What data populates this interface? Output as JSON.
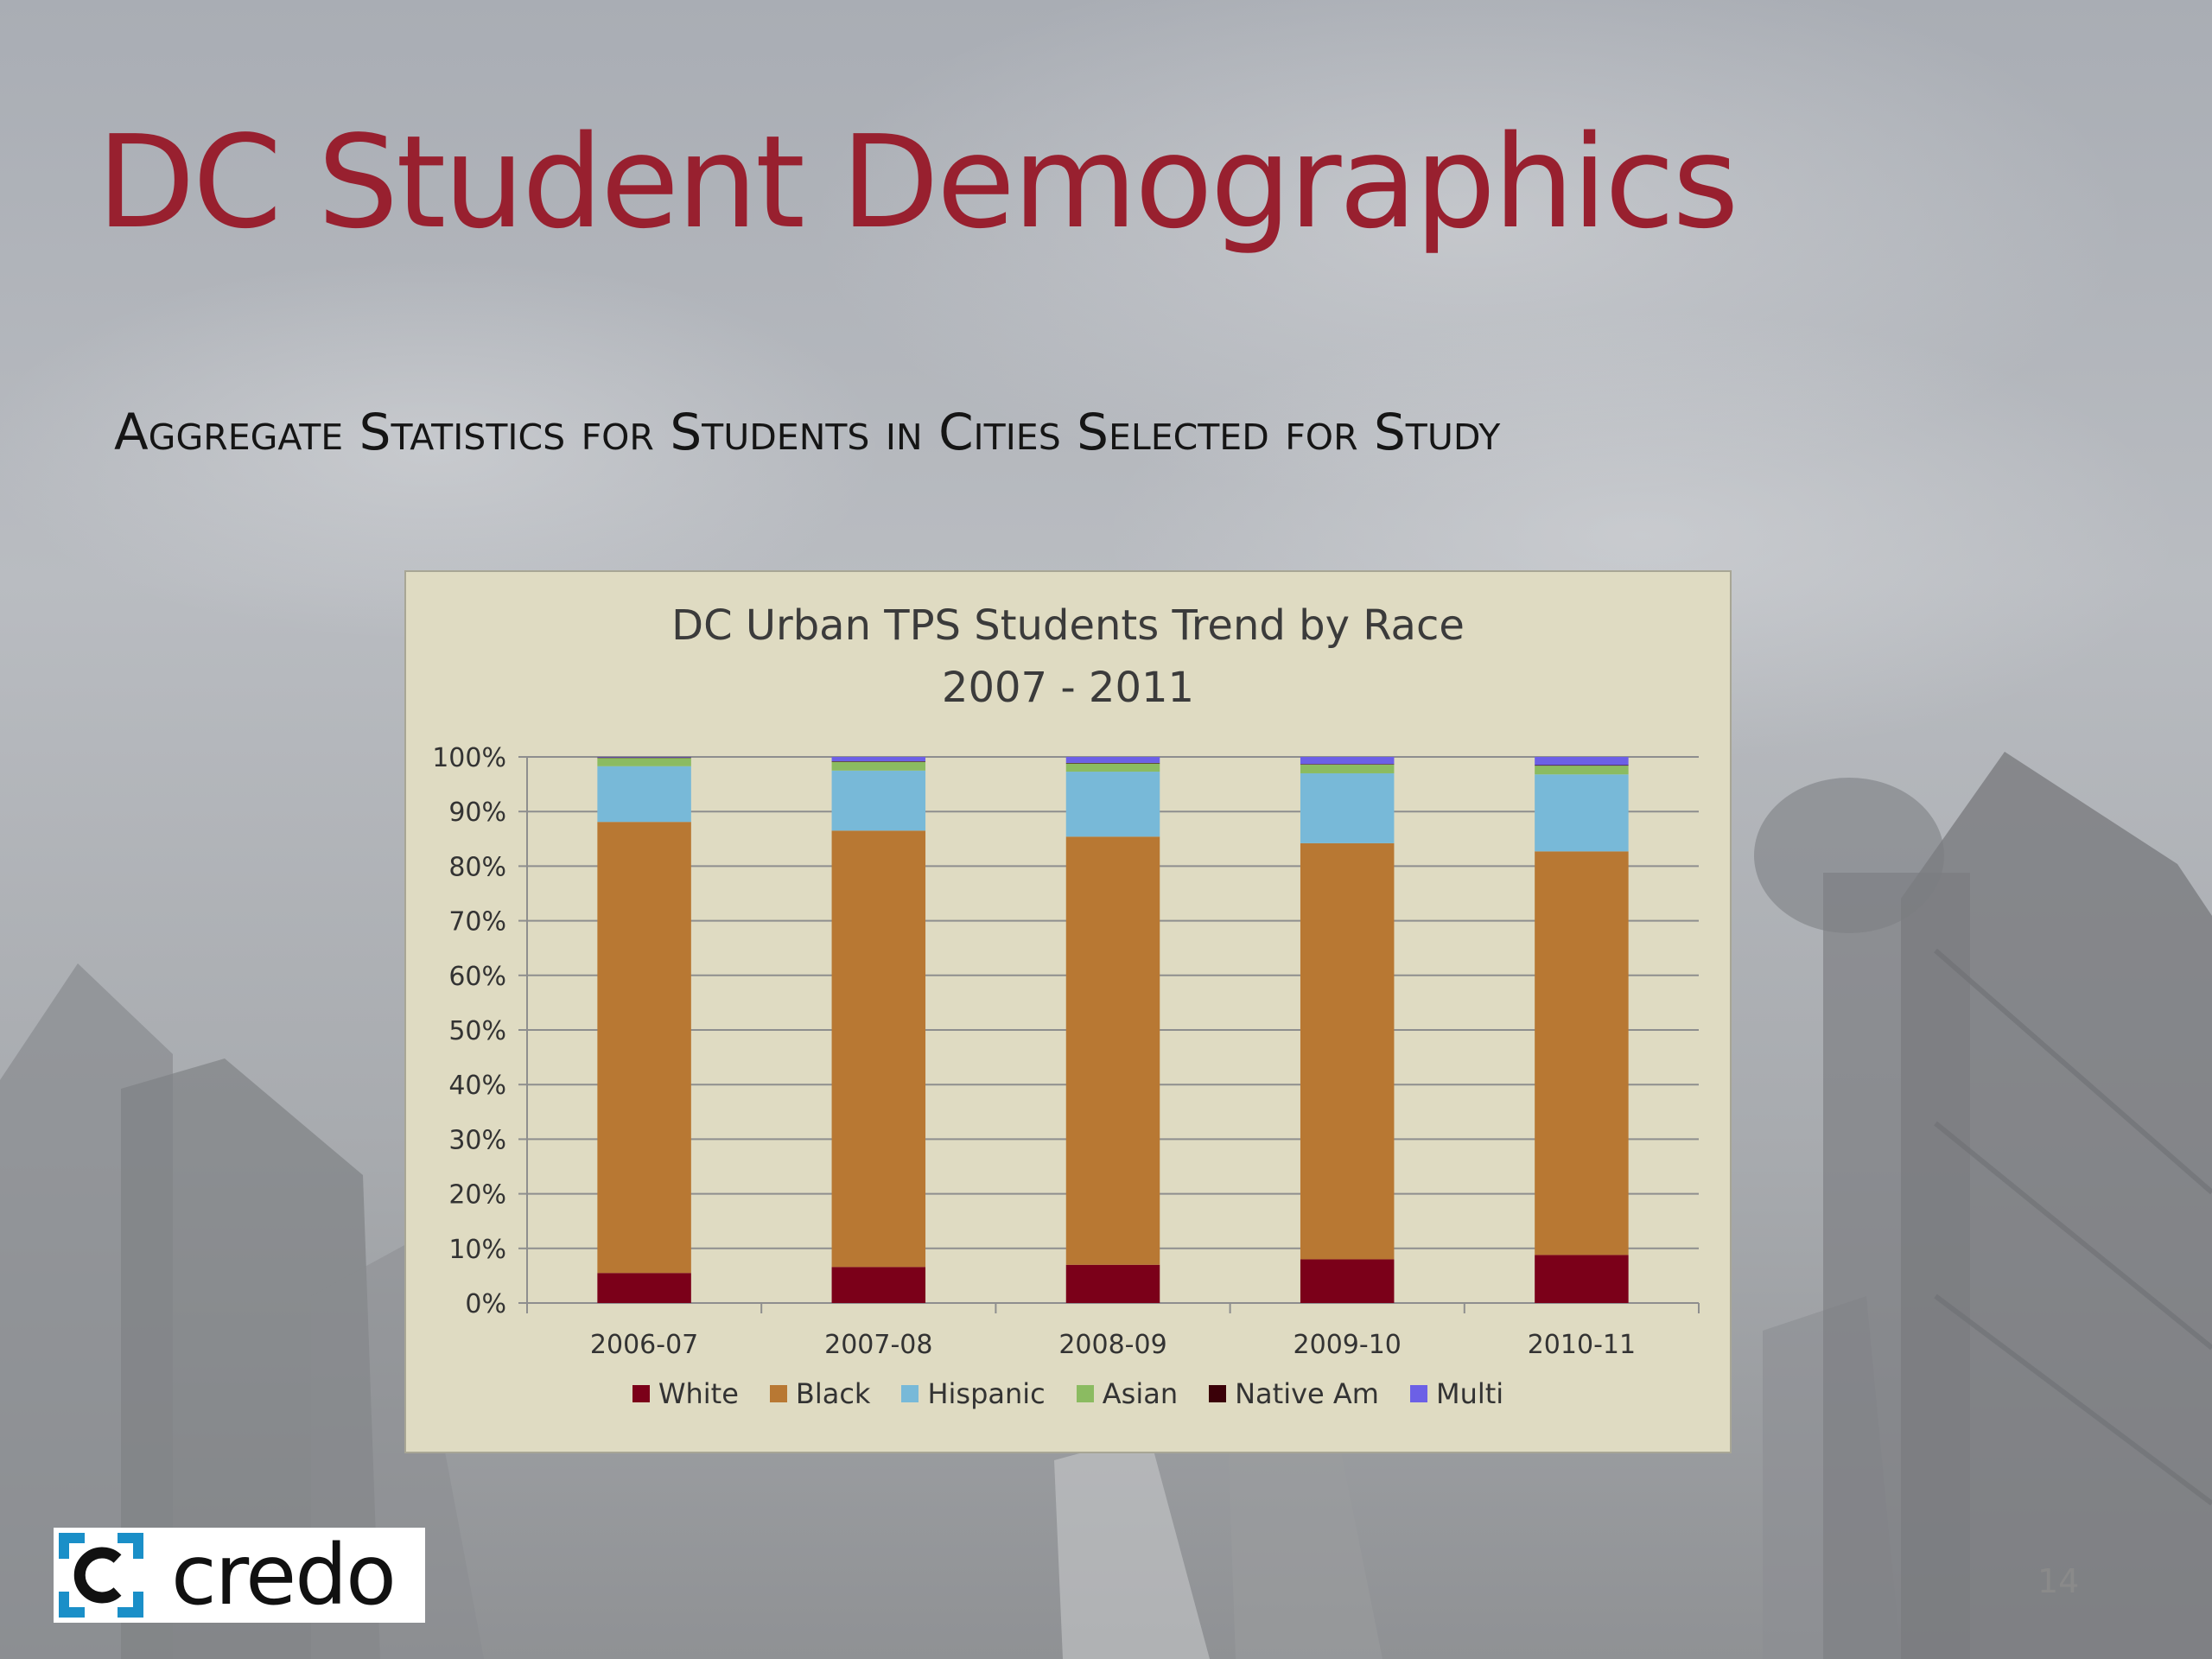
{
  "slide": {
    "title": "DC Student Demographics",
    "subtitle": "Aggregate Statistics for Students in Cities Selected for Study",
    "page_number": "14",
    "logo_text": "credo"
  },
  "colors": {
    "title": "#98202f",
    "chart_background": "#dfdbc2",
    "gridline": "#8e8e8e"
  },
  "chart_data": {
    "type": "bar",
    "stacked": true,
    "title_lines": [
      "DC Urban TPS Students Trend by Race",
      "2007 - 2011"
    ],
    "xlabel": "",
    "ylabel": "",
    "ylim": [
      0,
      100
    ],
    "ytick_labels": [
      "0%",
      "10%",
      "20%",
      "30%",
      "40%",
      "50%",
      "60%",
      "70%",
      "80%",
      "90%",
      "100%"
    ],
    "grid": true,
    "legend_position": "bottom",
    "categories": [
      "2006-07",
      "2007-08",
      "2008-09",
      "2009-10",
      "2010-11"
    ],
    "series": [
      {
        "name": "White",
        "color": "#7b0019",
        "values": [
          5.5,
          6.6,
          7.0,
          8.0,
          8.8
        ]
      },
      {
        "name": "Black",
        "color": "#b87833",
        "values": [
          82.6,
          79.9,
          78.4,
          76.2,
          73.9
        ]
      },
      {
        "name": "Hispanic",
        "color": "#78b9d8",
        "values": [
          10.2,
          11.0,
          11.9,
          12.8,
          14.1
        ]
      },
      {
        "name": "Asian",
        "color": "#8bbb61",
        "values": [
          1.5,
          1.6,
          1.5,
          1.6,
          1.6
        ]
      },
      {
        "name": "Native Am",
        "color": "#3a0008",
        "values": [
          0.1,
          0.1,
          0.1,
          0.1,
          0.1
        ]
      },
      {
        "name": "Multi",
        "color": "#6c60e6",
        "values": [
          0.1,
          0.8,
          1.1,
          1.3,
          1.5
        ]
      }
    ]
  }
}
